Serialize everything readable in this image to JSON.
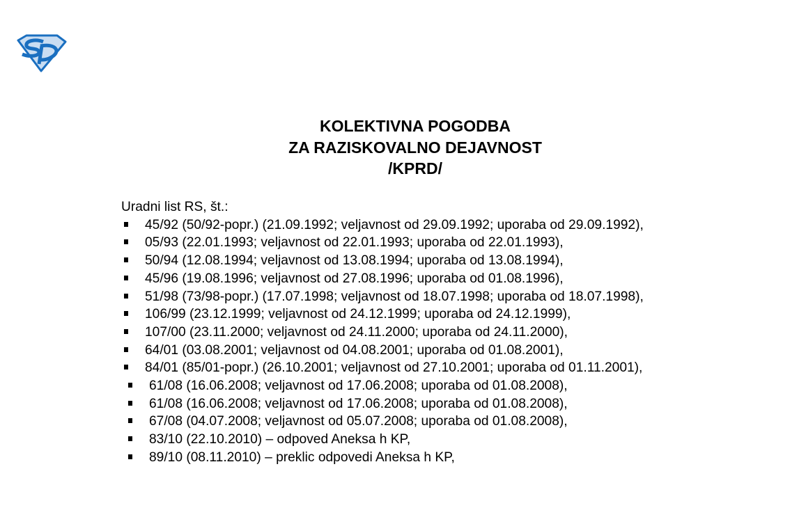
{
  "logo": {
    "text": "SD",
    "color": "#1a6fc0",
    "fill": "#c9ddf2"
  },
  "title": {
    "line1": "KOLEKTIVNA POGODBA",
    "line2": "ZA RAZISKOVALNO DEJAVNOST",
    "line3": "/KPRD/"
  },
  "intro": "Uradni list RS, št.:",
  "items": [
    {
      "text": "45/92 (50/92-popr.) (21.09.1992; veljavnost od 29.09.1992; uporaba od 29.09.1992),"
    },
    {
      "text": "05/93 (22.01.1993; veljavnost od 22.01.1993; uporaba od 22.01.1993),"
    },
    {
      "text": "50/94 (12.08.1994; veljavnost od 13.08.1994; uporaba od 13.08.1994),"
    },
    {
      "text": "45/96 (19.08.1996; veljavnost od 27.08.1996; uporaba od 01.08.1996),"
    },
    {
      "text": "51/98 (73/98-popr.) (17.07.1998; veljavnost od 18.07.1998; uporaba od 18.07.1998),"
    },
    {
      "text": "106/99 (23.12.1999; veljavnost od 24.12.1999; uporaba od 24.12.1999),"
    },
    {
      "text": "107/00 (23.11.2000; veljavnost od 24.11.2000; uporaba od 24.11.2000),"
    },
    {
      "text": "64/01 (03.08.2001; veljavnost od 04.08.2001; uporaba od 01.08.2001),"
    },
    {
      "text": "84/01 (85/01-popr.) (26.10.2001; veljavnost od 27.10.2001; uporaba od 01.11.2001),"
    },
    {
      "text": "61/08 (16.06.2008; veljavnost od 17.06.2008; uporaba od 01.08.2008),"
    },
    {
      "text": "61/08 (16.06.2008; veljavnost od 17.06.2008; uporaba od 01.08.2008),"
    },
    {
      "text": "67/08 (04.07.2008; veljavnost od 05.07.2008; uporaba od 01.08.2008),"
    },
    {
      "text": "83/10 (22.10.2010) – odpoved Aneksa h KP,"
    },
    {
      "text": "89/10 (08.11.2010) – preklic odpovedi Aneksa h KP,"
    }
  ]
}
